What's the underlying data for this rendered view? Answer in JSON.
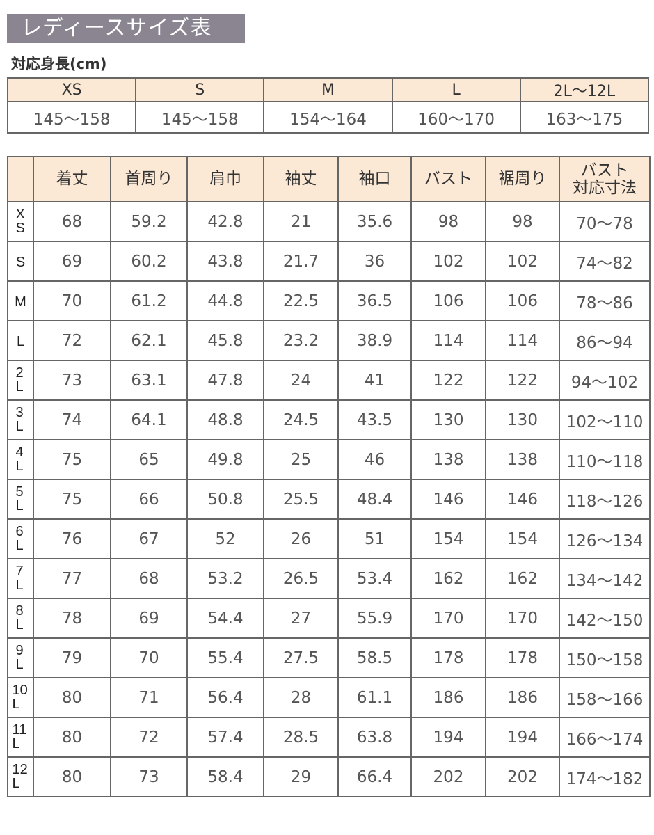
{
  "title": "レディースサイズ表",
  "height_section": {
    "label": "対応身長(cm)",
    "sizes": [
      "XS",
      "S",
      "M",
      "L",
      "2L〜12L"
    ],
    "heights": [
      "145〜158",
      "145〜158",
      "154〜164",
      "160〜170",
      "163〜175"
    ]
  },
  "size_table": {
    "header_bg": "#fbe9d6",
    "columns": [
      "",
      "着丈",
      "首周り",
      "肩巾",
      "袖丈",
      "袖口",
      "バスト",
      "裾周り",
      "バスト\n対応寸法"
    ],
    "rows": [
      {
        "size": "XS",
        "values": [
          "68",
          "59.2",
          "42.8",
          "21",
          "35.6",
          "98",
          "98",
          "70〜78"
        ]
      },
      {
        "size": "S",
        "values": [
          "69",
          "60.2",
          "43.8",
          "21.7",
          "36",
          "102",
          "102",
          "74〜82"
        ]
      },
      {
        "size": "M",
        "values": [
          "70",
          "61.2",
          "44.8",
          "22.5",
          "36.5",
          "106",
          "106",
          "78〜86"
        ]
      },
      {
        "size": "L",
        "values": [
          "72",
          "62.1",
          "45.8",
          "23.2",
          "38.9",
          "114",
          "114",
          "86〜94"
        ]
      },
      {
        "size": "2L",
        "values": [
          "73",
          "63.1",
          "47.8",
          "24",
          "41",
          "122",
          "122",
          "94〜102"
        ]
      },
      {
        "size": "3L",
        "values": [
          "74",
          "64.1",
          "48.8",
          "24.5",
          "43.5",
          "130",
          "130",
          "102〜110"
        ]
      },
      {
        "size": "4L",
        "values": [
          "75",
          "65",
          "49.8",
          "25",
          "46",
          "138",
          "138",
          "110〜118"
        ]
      },
      {
        "size": "5L",
        "values": [
          "75",
          "66",
          "50.8",
          "25.5",
          "48.4",
          "146",
          "146",
          "118〜126"
        ]
      },
      {
        "size": "6L",
        "values": [
          "76",
          "67",
          "52",
          "26",
          "51",
          "154",
          "154",
          "126〜134"
        ]
      },
      {
        "size": "7L",
        "values": [
          "77",
          "68",
          "53.2",
          "26.5",
          "53.4",
          "162",
          "162",
          "134〜142"
        ]
      },
      {
        "size": "8L",
        "values": [
          "78",
          "69",
          "54.4",
          "27",
          "55.9",
          "170",
          "170",
          "142〜150"
        ]
      },
      {
        "size": "9L",
        "values": [
          "79",
          "70",
          "55.4",
          "27.5",
          "58.5",
          "178",
          "178",
          "150〜158"
        ]
      },
      {
        "size": "10L",
        "values": [
          "80",
          "71",
          "56.4",
          "28",
          "61.1",
          "186",
          "186",
          "158〜166"
        ]
      },
      {
        "size": "11L",
        "values": [
          "80",
          "72",
          "57.4",
          "28.5",
          "63.8",
          "194",
          "194",
          "166〜174"
        ]
      },
      {
        "size": "12L",
        "values": [
          "80",
          "73",
          "58.4",
          "29",
          "66.4",
          "202",
          "202",
          "174〜182"
        ]
      }
    ]
  }
}
